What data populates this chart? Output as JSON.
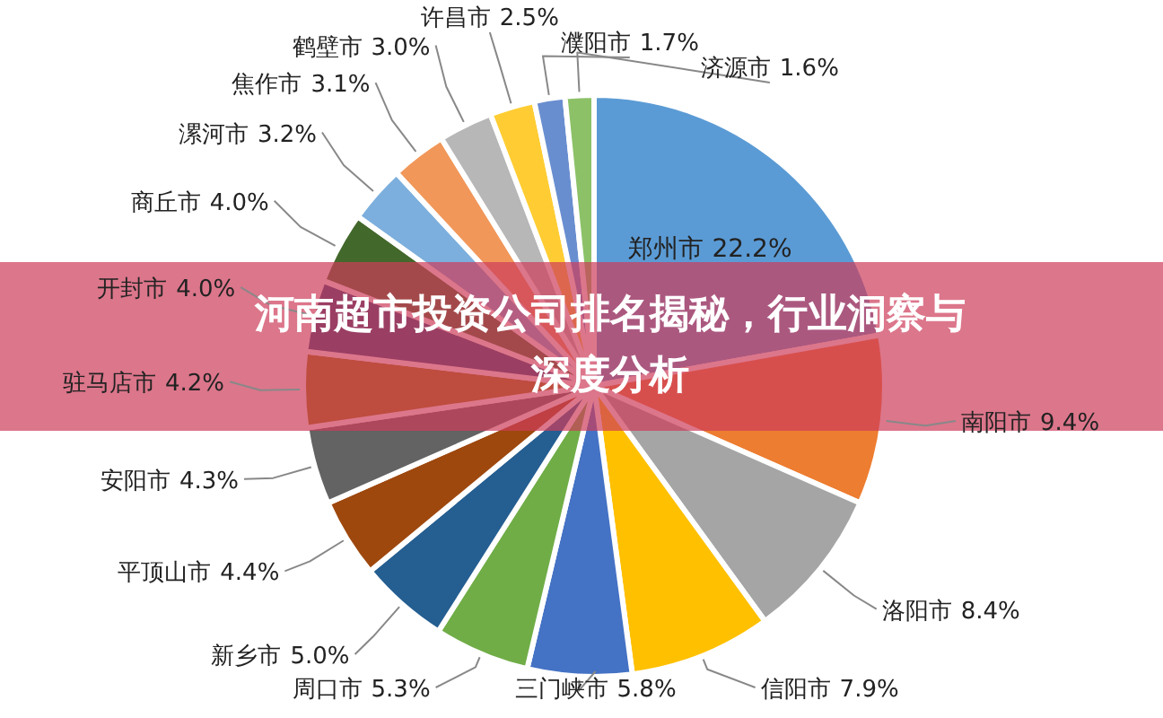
{
  "chart_data": {
    "type": "pie",
    "title": "河南超市投资公司排名揭秘，行业洞察与深度分析",
    "categories": [
      "郑州市",
      "南阳市",
      "洛阳市",
      "信阳市",
      "三门峡市",
      "周口市",
      "新乡市",
      "平顶山市",
      "安阳市",
      "驻马店市",
      "开封市",
      "商丘市",
      "漯河市",
      "焦作市",
      "鹤壁市",
      "许昌市",
      "濮阳市",
      "济源市"
    ],
    "values": [
      22.2,
      9.4,
      8.4,
      7.9,
      5.8,
      5.3,
      5.0,
      4.4,
      4.3,
      4.2,
      4.0,
      4.0,
      3.2,
      3.1,
      3.0,
      2.5,
      1.7,
      1.6
    ],
    "colors": [
      "#5b9bd5",
      "#ed7d31",
      "#a5a5a5",
      "#ffc000",
      "#4472c4",
      "#70ad47",
      "#255e91",
      "#9e480e",
      "#636363",
      "#997300",
      "#264478",
      "#43682b",
      "#7cafdd",
      "#f1975a",
      "#b7b7b7",
      "#ffcd33",
      "#698ed0",
      "#8cc168"
    ],
    "value_labels": [
      "22.2%",
      "9.4%",
      "8.4%",
      "7.9%",
      "5.8%",
      "5.3%",
      "5.0%",
      "4.4%",
      "4.3%",
      "4.2%",
      "4.0%",
      "4.0%",
      "3.2%",
      "3.1%",
      "3.0%",
      "2.5%",
      "1.7%",
      "1.6%"
    ]
  }
}
